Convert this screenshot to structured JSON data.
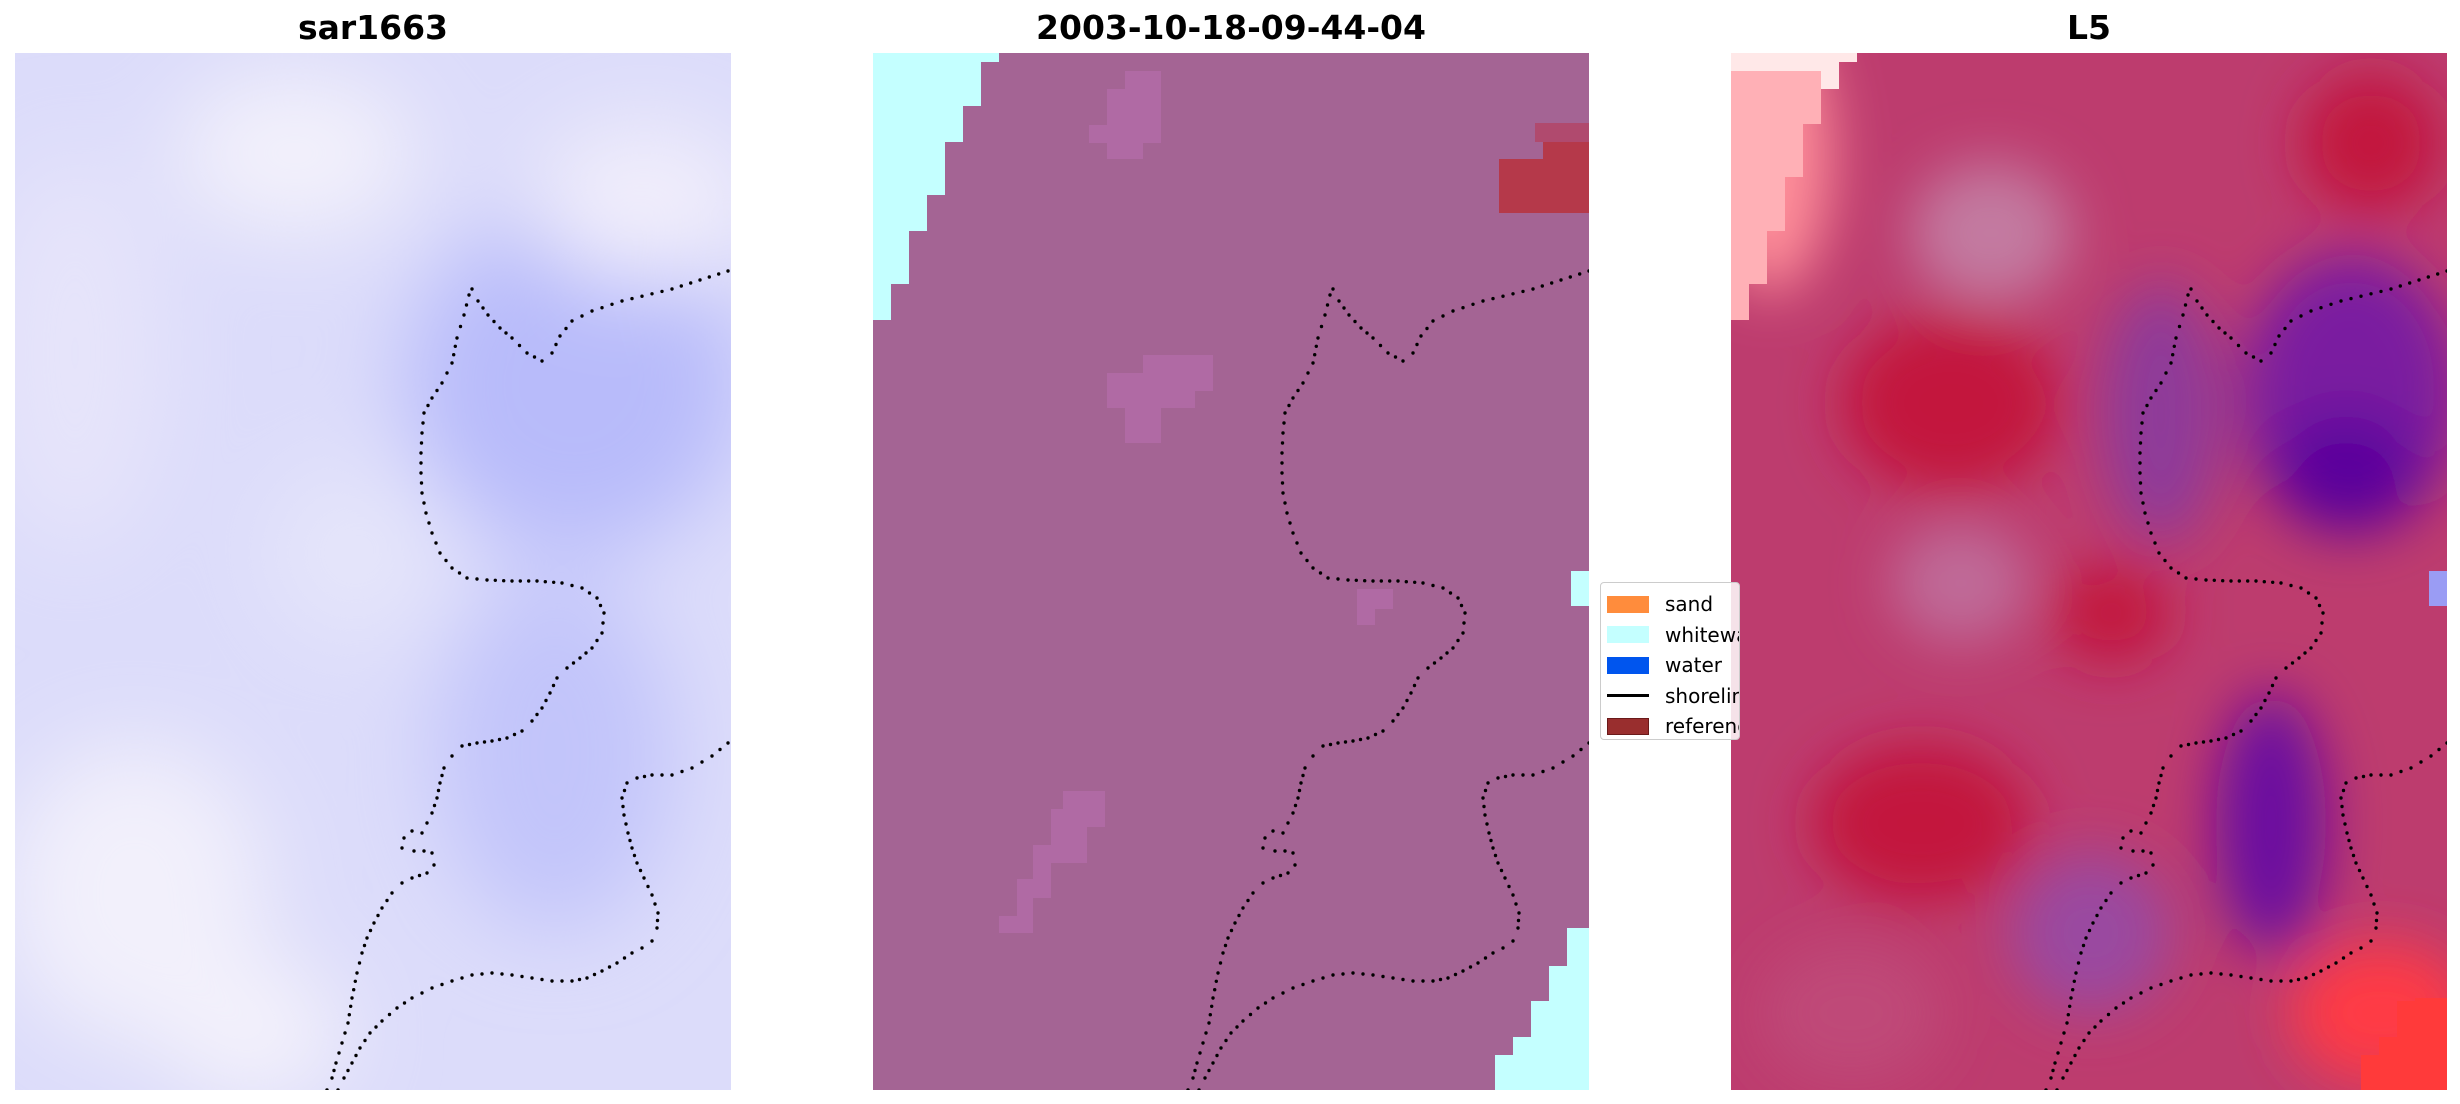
{
  "panels": [
    {
      "title": "sar1663",
      "colormap": "bwr-low-values",
      "base_color": "#d7d9fb"
    },
    {
      "title": "2003-10-18-09-44-04",
      "colormap": "classification",
      "base_color": "#a46494"
    },
    {
      "title": "L5",
      "colormap": "diverging-red-purple",
      "base_color": "#bd3c6e"
    }
  ],
  "legend": {
    "items": [
      {
        "label": "sand",
        "color": "#ff8c3c",
        "kind": "patch"
      },
      {
        "label": "whitewater",
        "color": "#c4ffff",
        "kind": "patch"
      },
      {
        "label": "water",
        "color": "#0055ee",
        "kind": "patch"
      },
      {
        "label": "shoreline",
        "color": "#000000",
        "kind": "line"
      },
      {
        "label": "reference",
        "color": "#992e2e",
        "kind": "patch"
      }
    ]
  },
  "colors": {
    "shoreline_dots": "#000000",
    "whitewater": "#c4ffff",
    "reference_region": "#b5394a",
    "sar_light": "#f4f2fb",
    "sar_dark": "#b8bbfa",
    "l5_red": "#c3123c",
    "l5_purple": "#5e049c",
    "l5_light": "#ffdada"
  }
}
